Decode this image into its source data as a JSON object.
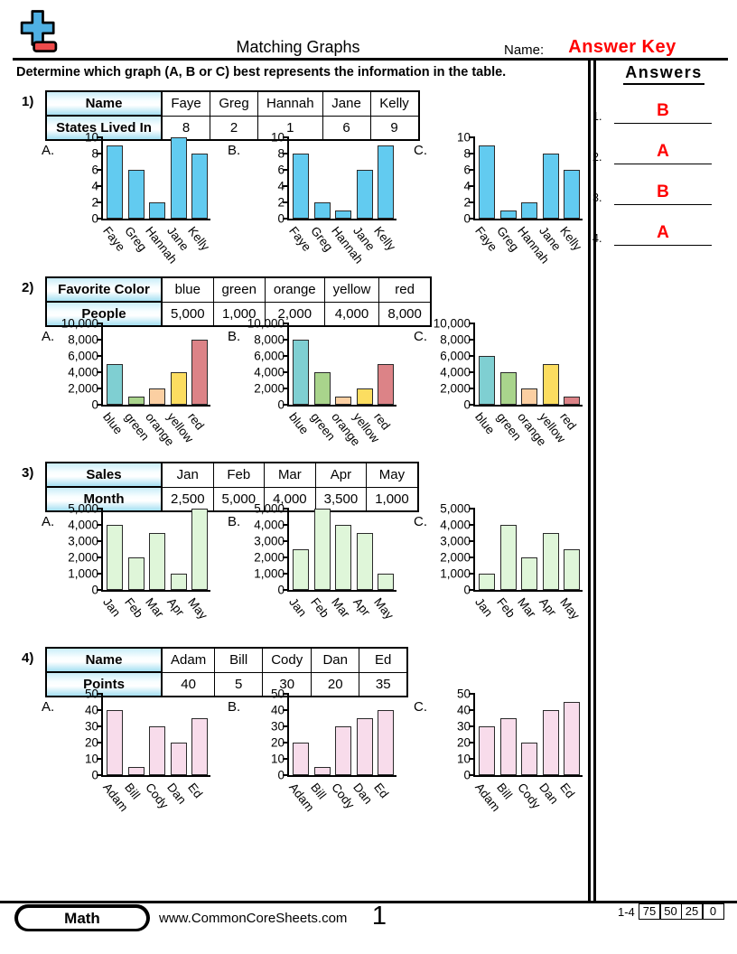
{
  "colors": {
    "answer_red": "#ff0000",
    "logo_blue": "#4fb0e3",
    "logo_red": "#ee4b4b",
    "table_header_top": "#c9edf8",
    "table_header_bottom": "#a5dff2"
  },
  "header": {
    "title": "Matching Graphs",
    "name_label": "Name:",
    "name_value": "Answer Key",
    "instruction": "Determine which graph (A, B or C) best represents the information in the table."
  },
  "answers_panel": {
    "title": "Answers",
    "items": [
      {
        "number": "1.",
        "answer": "B"
      },
      {
        "number": "2.",
        "answer": "A"
      },
      {
        "number": "3.",
        "answer": "B"
      },
      {
        "number": "4.",
        "answer": "A"
      }
    ]
  },
  "problems": [
    {
      "number": "1)",
      "table": {
        "row1_header": "Name",
        "row1_cells": [
          "Faye",
          "Greg",
          "Hannah",
          "Jane",
          "Kelly"
        ],
        "row2_header": "States Lived In",
        "row2_cells": [
          "8",
          "2",
          "1",
          "6",
          "9"
        ]
      },
      "chart_data": {
        "type": "bar",
        "categories": [
          "Faye",
          "Greg",
          "Hannah",
          "Jane",
          "Kelly"
        ],
        "ylim": [
          0,
          10
        ],
        "ytick_labels": [
          "10",
          "8",
          "6",
          "4",
          "2",
          "0"
        ],
        "bar_colors": [
          "#62cbf0",
          "#62cbf0",
          "#62cbf0",
          "#62cbf0",
          "#62cbf0"
        ],
        "graphs": [
          {
            "label": "A.",
            "values": [
              9,
              6,
              2,
              10,
              8
            ]
          },
          {
            "label": "B.",
            "values": [
              8,
              2,
              1,
              6,
              9
            ]
          },
          {
            "label": "C.",
            "values": [
              9,
              1,
              2,
              8,
              6
            ]
          }
        ]
      }
    },
    {
      "number": "2)",
      "table": {
        "row1_header": "Favorite Color",
        "row1_cells": [
          "blue",
          "green",
          "orange",
          "yellow",
          "red"
        ],
        "row2_header": "People",
        "row2_cells": [
          "5,000",
          "1,000",
          "2,000",
          "4,000",
          "8,000"
        ]
      },
      "chart_data": {
        "type": "bar",
        "categories": [
          "blue",
          "green",
          "orange",
          "yellow",
          "red"
        ],
        "ylim": [
          0,
          10000
        ],
        "ytick_labels": [
          "10,000",
          "8,000",
          "6,000",
          "4,000",
          "2,000",
          "0"
        ],
        "bar_colors": [
          "#7fcfd2",
          "#a9d48c",
          "#fbcfa2",
          "#fcdd60",
          "#dc8387"
        ],
        "graphs": [
          {
            "label": "A.",
            "values": [
              5000,
              1000,
              2000,
              4000,
              8000
            ]
          },
          {
            "label": "B.",
            "values": [
              8000,
              4000,
              1000,
              2000,
              5000
            ]
          },
          {
            "label": "C.",
            "values": [
              6000,
              4000,
              2000,
              5000,
              1000
            ]
          }
        ]
      }
    },
    {
      "number": "3)",
      "table": {
        "row1_header": "Sales",
        "row1_cells": [
          "Jan",
          "Feb",
          "Mar",
          "Apr",
          "May"
        ],
        "row2_header": "Month",
        "row2_cells": [
          "2,500",
          "5,000",
          "4,000",
          "3,500",
          "1,000"
        ]
      },
      "chart_data": {
        "type": "bar",
        "categories": [
          "Jan",
          "Feb",
          "Mar",
          "Apr",
          "May"
        ],
        "ylim": [
          0,
          5000
        ],
        "ytick_labels": [
          "5,000",
          "4,000",
          "3,000",
          "2,000",
          "1,000",
          "0"
        ],
        "bar_colors": [
          "#dff6d9",
          "#dff6d9",
          "#dff6d9",
          "#dff6d9",
          "#dff6d9"
        ],
        "graphs": [
          {
            "label": "A.",
            "values": [
              4000,
              2000,
              3500,
              1000,
              5000
            ]
          },
          {
            "label": "B.",
            "values": [
              2500,
              5000,
              4000,
              3500,
              1000
            ]
          },
          {
            "label": "C.",
            "values": [
              1000,
              4000,
              2000,
              3500,
              2500
            ]
          }
        ]
      }
    },
    {
      "number": "4)",
      "table": {
        "row1_header": "Name",
        "row1_cells": [
          "Adam",
          "Bill",
          "Cody",
          "Dan",
          "Ed"
        ],
        "row2_header": "Points",
        "row2_cells": [
          "40",
          "5",
          "30",
          "20",
          "35"
        ]
      },
      "chart_data": {
        "type": "bar",
        "categories": [
          "Adam",
          "Bill",
          "Cody",
          "Dan",
          "Ed"
        ],
        "ylim": [
          0,
          50
        ],
        "ytick_labels": [
          "50",
          "40",
          "30",
          "20",
          "10",
          "0"
        ],
        "bar_colors": [
          "#f8dceb",
          "#f8dceb",
          "#f8dceb",
          "#f8dceb",
          "#f8dceb"
        ],
        "graphs": [
          {
            "label": "A.",
            "values": [
              40,
              5,
              30,
              20,
              35
            ]
          },
          {
            "label": "B.",
            "values": [
              20,
              5,
              30,
              35,
              40
            ]
          },
          {
            "label": "C.",
            "values": [
              30,
              35,
              20,
              40,
              45
            ]
          }
        ]
      }
    }
  ],
  "footer": {
    "subject": "Math",
    "website": "www.CommonCoreSheets.com",
    "page_number": "1",
    "score_label": "1-4",
    "score_cells": [
      "75",
      "50",
      "25",
      "0"
    ]
  }
}
